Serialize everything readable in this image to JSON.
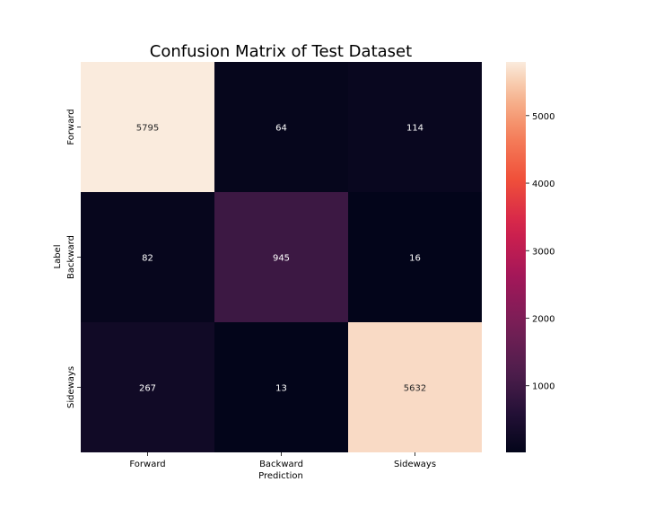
{
  "chart_data": {
    "type": "heatmap",
    "title": "Confusion Matrix of Test Dataset",
    "xlabel": "Prediction",
    "ylabel": "Label",
    "x_categories": [
      "Forward",
      "Backward",
      "Sideways"
    ],
    "y_categories": [
      "Forward",
      "Backward",
      "Sideways"
    ],
    "values": [
      [
        5795,
        64,
        114
      ],
      [
        82,
        945,
        16
      ],
      [
        267,
        13,
        5632
      ]
    ],
    "colorbar": {
      "ticks": [
        1000,
        2000,
        3000,
        4000,
        5000
      ],
      "tick_labels": [
        "1000",
        "2000",
        "3000",
        "4000",
        "5000"
      ],
      "range": [
        13,
        5795
      ],
      "colormap": "rocket"
    },
    "grid": false,
    "legend": "colorbar-right"
  }
}
